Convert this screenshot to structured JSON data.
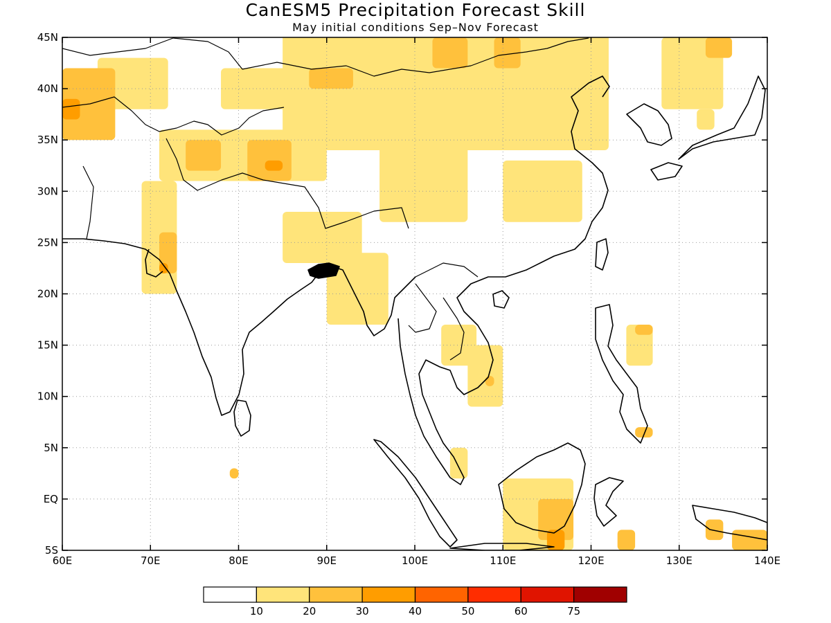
{
  "title": "CanESM5 Precipitation Forecast Skill",
  "subtitle": "May initial conditions  Sep–Nov Forecast",
  "x_ticks": [
    "60E",
    "70E",
    "80E",
    "90E",
    "100E",
    "110E",
    "120E",
    "130E",
    "140E"
  ],
  "y_ticks": [
    "45N",
    "40N",
    "35N",
    "30N",
    "25N",
    "20N",
    "15N",
    "10N",
    "5N",
    "EQ",
    "5S"
  ],
  "colorbar": {
    "colors": [
      "#ffffff",
      "#ffe47a",
      "#ffc13c",
      "#ff9d00",
      "#ff6400",
      "#ff2d00",
      "#e01400",
      "#a00000"
    ],
    "labels": [
      "10",
      "20",
      "30",
      "40",
      "50",
      "60",
      "75"
    ]
  },
  "chart_data": {
    "type": "heatmap",
    "title": "CanESM5 Precipitation Forecast Skill",
    "subtitle": "May initial conditions  Sep–Nov Forecast",
    "lon_range": [
      60,
      140
    ],
    "lat_range": [
      -5,
      45
    ],
    "grid": "dotted",
    "levels": [
      10,
      20,
      30,
      40,
      50,
      60,
      75
    ],
    "skill_regions": [
      {
        "lon": [
          60,
          66
        ],
        "lat": [
          35,
          42
        ],
        "level": 20
      },
      {
        "lon": [
          60,
          62
        ],
        "lat": [
          37,
          39
        ],
        "level": 30
      },
      {
        "lon": [
          64,
          72
        ],
        "lat": [
          38,
          43
        ],
        "level": 10
      },
      {
        "lon": [
          69,
          73
        ],
        "lat": [
          20,
          31
        ],
        "level": 10
      },
      {
        "lon": [
          71,
          73
        ],
        "lat": [
          22,
          26
        ],
        "level": 20
      },
      {
        "lon": [
          71,
          72
        ],
        "lat": [
          22,
          23
        ],
        "level": 30
      },
      {
        "lon": [
          71,
          90
        ],
        "lat": [
          31,
          36
        ],
        "level": 10
      },
      {
        "lon": [
          74,
          78
        ],
        "lat": [
          32,
          35
        ],
        "level": 20
      },
      {
        "lon": [
          81,
          86
        ],
        "lat": [
          31,
          35
        ],
        "level": 20
      },
      {
        "lon": [
          83,
          85
        ],
        "lat": [
          32,
          33
        ],
        "level": 30
      },
      {
        "lon": [
          78,
          95
        ],
        "lat": [
          38,
          42
        ],
        "level": 10
      },
      {
        "lon": [
          88,
          93
        ],
        "lat": [
          40,
          42
        ],
        "level": 20
      },
      {
        "lon": [
          85,
          122
        ],
        "lat": [
          34,
          46
        ],
        "level": 10
      },
      {
        "lon": [
          102,
          106
        ],
        "lat": [
          42,
          45
        ],
        "level": 20
      },
      {
        "lon": [
          109,
          112
        ],
        "lat": [
          42,
          45
        ],
        "level": 20
      },
      {
        "lon": [
          96,
          106
        ],
        "lat": [
          27,
          36
        ],
        "level": 10
      },
      {
        "lon": [
          110,
          119
        ],
        "lat": [
          27,
          33
        ],
        "level": 10
      },
      {
        "lon": [
          85,
          94
        ],
        "lat": [
          23,
          28
        ],
        "level": 10
      },
      {
        "lon": [
          90,
          97
        ],
        "lat": [
          17,
          24
        ],
        "level": 10
      },
      {
        "lon": [
          79,
          80
        ],
        "lat": [
          2,
          3
        ],
        "level": 20
      },
      {
        "lon": [
          103,
          107
        ],
        "lat": [
          13,
          17
        ],
        "level": 10
      },
      {
        "lon": [
          106,
          110
        ],
        "lat": [
          9,
          15
        ],
        "level": 10
      },
      {
        "lon": [
          108,
          109
        ],
        "lat": [
          11,
          12
        ],
        "level": 20
      },
      {
        "lon": [
          104,
          106
        ],
        "lat": [
          2,
          5
        ],
        "level": 10
      },
      {
        "lon": [
          114,
          118
        ],
        "lat": [
          -4,
          0
        ],
        "level": 20
      },
      {
        "lon": [
          115,
          117
        ],
        "lat": [
          -5,
          -3
        ],
        "level": 30
      },
      {
        "lon": [
          110,
          118
        ],
        "lat": [
          -5,
          2
        ],
        "level": 10
      },
      {
        "lon": [
          124,
          127
        ],
        "lat": [
          13,
          17
        ],
        "level": 10
      },
      {
        "lon": [
          125,
          127
        ],
        "lat": [
          16,
          17
        ],
        "level": 20
      },
      {
        "lon": [
          125,
          127
        ],
        "lat": [
          6,
          7
        ],
        "level": 20
      },
      {
        "lon": [
          123,
          125
        ],
        "lat": [
          -5,
          -3
        ],
        "level": 20
      },
      {
        "lon": [
          136,
          140
        ],
        "lat": [
          -5,
          -3
        ],
        "level": 20
      },
      {
        "lon": [
          133,
          135
        ],
        "lat": [
          -4,
          -2
        ],
        "level": 20
      },
      {
        "lon": [
          128,
          135
        ],
        "lat": [
          38,
          45
        ],
        "level": 10
      },
      {
        "lon": [
          133,
          136
        ],
        "lat": [
          43,
          45
        ],
        "level": 20
      },
      {
        "lon": [
          132,
          134
        ],
        "lat": [
          36,
          38
        ],
        "level": 10
      }
    ]
  }
}
